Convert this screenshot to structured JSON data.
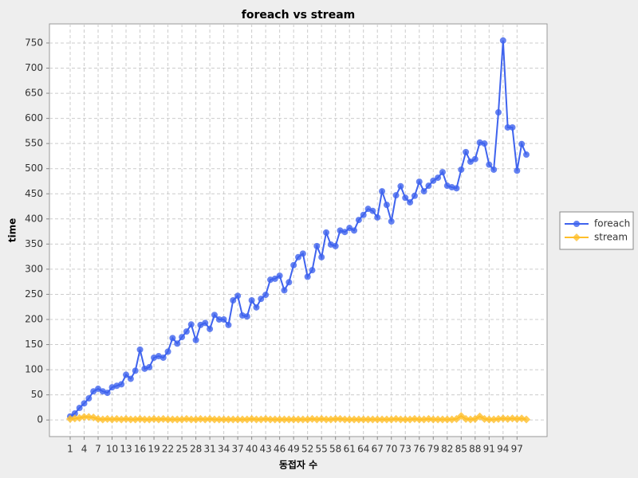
{
  "chart_data": {
    "type": "line",
    "title": "foreach vs stream",
    "x_label": "동접자 수",
    "y_label": "time",
    "categories": [
      "1",
      null,
      null,
      "4",
      null,
      null,
      "7",
      null,
      null,
      "10",
      null,
      null,
      "13",
      null,
      null,
      "16",
      null,
      null,
      "19",
      null,
      null,
      "22",
      null,
      null,
      "25",
      null,
      null,
      "28",
      null,
      null,
      "31",
      null,
      null,
      "34",
      null,
      null,
      "37",
      null,
      null,
      "40",
      null,
      null,
      "43",
      null,
      null,
      "46",
      null,
      null,
      "49",
      null,
      null,
      "52",
      null,
      null,
      "55",
      null,
      null,
      "58",
      null,
      null,
      "61",
      null,
      null,
      "64",
      null,
      null,
      "67",
      null,
      null,
      "70",
      null,
      null,
      "73",
      null,
      null,
      "76",
      null,
      null,
      "79",
      null,
      null,
      "82",
      null,
      null,
      "85",
      null,
      null,
      "88",
      null,
      null,
      "91",
      null,
      null,
      "94",
      null,
      null,
      "97",
      null,
      null
    ],
    "series": [
      {
        "name": "foreach",
        "color": "#3f63ee",
        "marker": "circle",
        "values": [
          7,
          13,
          24,
          33,
          43,
          57,
          62,
          57,
          54,
          65,
          68,
          71,
          90,
          82,
          98,
          140,
          102,
          105,
          124,
          127,
          124,
          136,
          163,
          152,
          165,
          176,
          190,
          159,
          189,
          193,
          181,
          209,
          200,
          200,
          189,
          238,
          247,
          208,
          206,
          238,
          224,
          241,
          249,
          279,
          281,
          287,
          258,
          274,
          308,
          324,
          331,
          285,
          298,
          346,
          324,
          373,
          349,
          346,
          377,
          374,
          382,
          377,
          398,
          408,
          420,
          416,
          403,
          455,
          428,
          395,
          447,
          465,
          442,
          433,
          446,
          474,
          455,
          466,
          476,
          482,
          493,
          466,
          463,
          461,
          498,
          533,
          514,
          519,
          552,
          550,
          508,
          498,
          612,
          755,
          582,
          582,
          496,
          549,
          528
        ]
      },
      {
        "name": "stream",
        "color": "#ffbf2a",
        "marker": "diamond",
        "values": [
          2,
          3,
          4,
          6,
          6,
          5,
          2,
          1,
          2,
          1,
          2,
          1,
          2,
          1,
          1,
          2,
          1,
          1,
          2,
          1,
          2,
          1,
          1,
          1,
          1,
          2,
          1,
          1,
          2,
          1,
          2,
          1,
          1,
          1,
          1,
          1,
          1,
          1,
          1,
          2,
          1,
          1,
          2,
          1,
          1,
          1,
          1,
          1,
          1,
          1,
          1,
          1,
          2,
          1,
          2,
          1,
          1,
          2,
          2,
          1,
          1,
          1,
          1,
          1,
          1,
          1,
          1,
          1,
          1,
          1,
          2,
          1,
          1,
          1,
          2,
          1,
          1,
          2,
          1,
          1,
          1,
          1,
          1,
          2,
          8,
          2,
          1,
          2,
          7,
          2,
          1,
          1,
          2,
          3,
          2,
          3,
          2,
          3,
          1
        ]
      }
    ],
    "ylim": [
      -33,
      788
    ],
    "yticks": [
      0,
      50,
      100,
      150,
      200,
      250,
      300,
      350,
      400,
      450,
      500,
      550,
      600,
      650,
      700,
      750
    ],
    "grid": true,
    "legend": "right"
  }
}
